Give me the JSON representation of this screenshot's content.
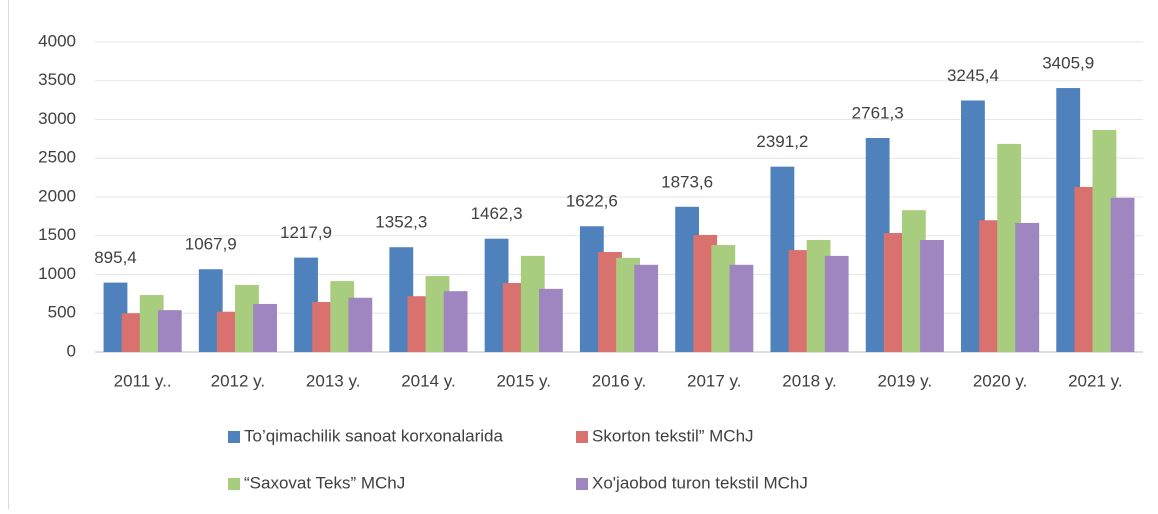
{
  "chart_data": {
    "type": "bar",
    "categories": [
      "2011 y..",
      "2012 y.",
      "2013 y.",
      "2014 y.",
      "2015 y.",
      "2016 y.",
      "2017 y.",
      "2018 y.",
      "2019 y.",
      "2020 y.",
      "2021 y."
    ],
    "series": [
      {
        "name": "To’qimachilik sanoat korxonalarida",
        "color": "#4f81bd",
        "values": [
          895.4,
          1067.9,
          1217.9,
          1352.3,
          1462.3,
          1622.6,
          1873.6,
          2391.2,
          2761.3,
          3245.4,
          3405.9
        ],
        "value_labels": [
          "895,4",
          "1067,9",
          "1217,9",
          "1352,3",
          "1462,3",
          "1622,6",
          "1873,6",
          "2391,2",
          "2761,3",
          "3245,4",
          "3405,9"
        ]
      },
      {
        "name": "Skorton tekstil” MChJ",
        "color": "#d9716f",
        "values": [
          500,
          520,
          645,
          720,
          890,
          1290,
          1510,
          1315,
          1535,
          1700,
          2130
        ]
      },
      {
        "name": "“Saxovat Teks” MChJ",
        "color": "#a9cd7f",
        "values": [
          735,
          865,
          915,
          980,
          1240,
          1215,
          1380,
          1445,
          1830,
          2685,
          2865
        ]
      },
      {
        "name": "Xo'jaobod turon tekstil MChJ",
        "color": "#9f86c0",
        "values": [
          540,
          620,
          700,
          785,
          815,
          1125,
          1125,
          1240,
          1445,
          1665,
          1990
        ]
      }
    ],
    "ylim": [
      0,
      4000
    ],
    "yticks": [
      0,
      500,
      1000,
      1500,
      2000,
      2500,
      3000,
      3500,
      4000
    ],
    "grid": true,
    "legend": "bottom"
  }
}
